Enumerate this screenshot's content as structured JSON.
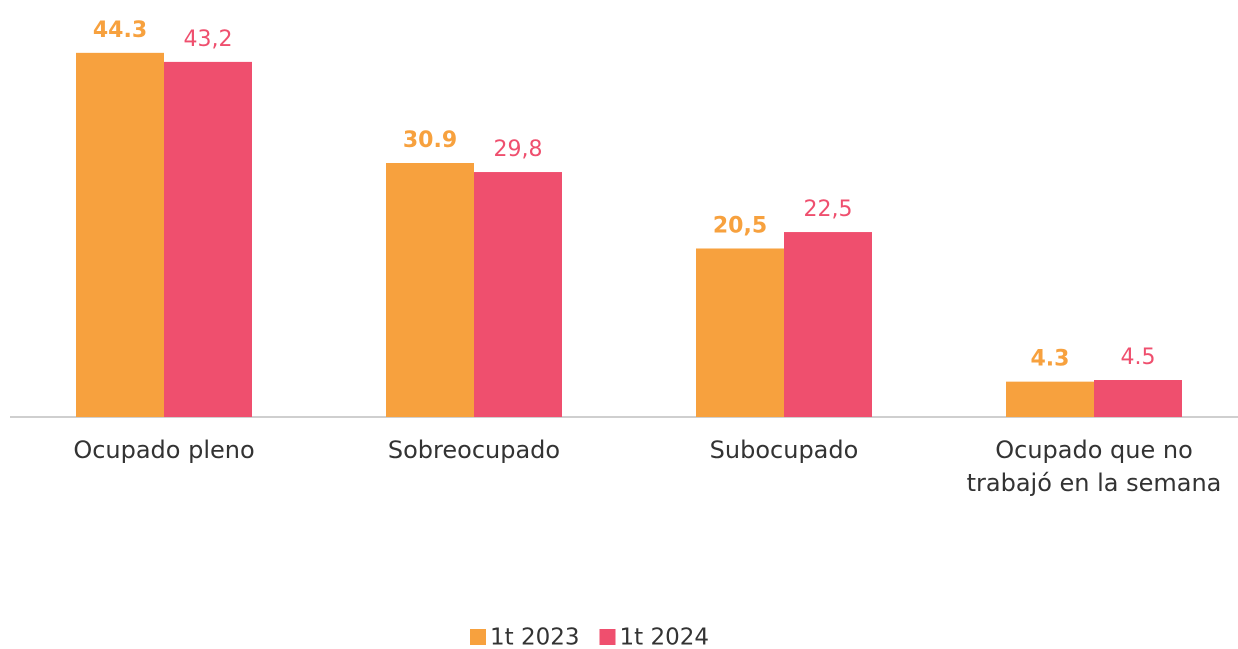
{
  "chart_data": {
    "type": "bar",
    "categories": [
      "Ocupado pleno",
      "Sobreocupado",
      "Subocupado",
      "Ocupado que no trabajó en la semana"
    ],
    "series": [
      {
        "name": "1t 2023",
        "color": "#f7a13e",
        "values": [
          44.3,
          30.9,
          20.5,
          4.3
        ],
        "value_labels": [
          "44.3",
          "30.9",
          "20,5",
          "4.3"
        ]
      },
      {
        "name": "1t 2024",
        "color": "#ef4f6e",
        "values": [
          43.2,
          29.8,
          22.5,
          4.5
        ],
        "value_labels": [
          "43,2",
          "29,8",
          "22,5",
          "4.5"
        ]
      }
    ],
    "legend": "bottom"
  }
}
